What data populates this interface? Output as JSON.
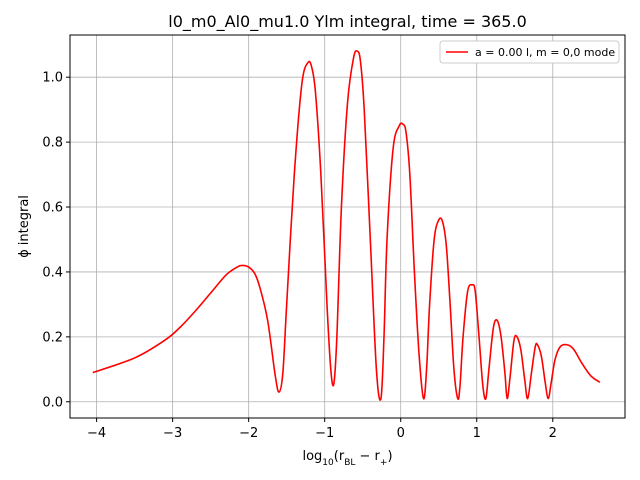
{
  "chart_data": {
    "type": "line",
    "title": "l0_m0_Al0_mu1.0 Ylm integral, time = 365.0",
    "xlabel": "log₁₀(r_BL − r₊)",
    "ylabel": "ϕ integral",
    "xlim": [
      -4.35,
      2.95
    ],
    "ylim": [
      -0.05,
      1.13
    ],
    "xticks": [
      -4,
      -3,
      -2,
      -1,
      0,
      1,
      2
    ],
    "xtick_labels": [
      "−4",
      "−3",
      "−2",
      "−1",
      "0",
      "1",
      "2"
    ],
    "yticks": [
      0.0,
      0.2,
      0.4,
      0.6,
      0.8,
      1.0
    ],
    "ytick_labels": [
      "0.0",
      "0.2",
      "0.4",
      "0.6",
      "0.8",
      "1.0"
    ],
    "grid": true,
    "legend_position": "top-right",
    "series": [
      {
        "name": "a = 0.00 l, m = 0,0 mode",
        "color": "#ff0000",
        "x": [
          -4.05,
          -3.5,
          -3.1,
          -2.9,
          -2.7,
          -2.5,
          -2.3,
          -2.15,
          -2.08,
          -2.0,
          -1.92,
          -1.85,
          -1.75,
          -1.65,
          -1.6,
          -1.55,
          -1.5,
          -1.4,
          -1.3,
          -1.22,
          -1.17,
          -1.12,
          -1.05,
          -0.97,
          -0.92,
          -0.88,
          -0.84,
          -0.78,
          -0.7,
          -0.62,
          -0.57,
          -0.53,
          -0.48,
          -0.4,
          -0.32,
          -0.26,
          -0.22,
          -0.18,
          -0.1,
          -0.02,
          0.03,
          0.07,
          0.12,
          0.18,
          0.24,
          0.3,
          0.34,
          0.38,
          0.44,
          0.5,
          0.55,
          0.6,
          0.65,
          0.7,
          0.75,
          0.78,
          0.82,
          0.88,
          0.94,
          0.98,
          1.03,
          1.08,
          1.12,
          1.16,
          1.22,
          1.27,
          1.32,
          1.37,
          1.4,
          1.44,
          1.49,
          1.53,
          1.58,
          1.63,
          1.67,
          1.72,
          1.77,
          1.8,
          1.85,
          1.9,
          1.94,
          1.98,
          2.03,
          2.1,
          2.2,
          2.28,
          2.38,
          2.5,
          2.62
        ],
        "y": [
          0.09,
          0.135,
          0.19,
          0.23,
          0.28,
          0.335,
          0.39,
          0.415,
          0.42,
          0.415,
          0.395,
          0.35,
          0.25,
          0.08,
          0.03,
          0.09,
          0.3,
          0.7,
          0.98,
          1.045,
          1.03,
          0.95,
          0.7,
          0.3,
          0.1,
          0.055,
          0.2,
          0.6,
          0.92,
          1.06,
          1.08,
          1.05,
          0.9,
          0.5,
          0.1,
          0.01,
          0.2,
          0.5,
          0.78,
          0.85,
          0.855,
          0.83,
          0.7,
          0.4,
          0.15,
          0.01,
          0.1,
          0.3,
          0.5,
          0.56,
          0.555,
          0.48,
          0.3,
          0.1,
          0.01,
          0.05,
          0.2,
          0.34,
          0.36,
          0.34,
          0.2,
          0.05,
          0.01,
          0.1,
          0.23,
          0.25,
          0.2,
          0.09,
          0.01,
          0.08,
          0.19,
          0.2,
          0.16,
          0.07,
          0.01,
          0.09,
          0.17,
          0.175,
          0.14,
          0.06,
          0.01,
          0.06,
          0.13,
          0.17,
          0.175,
          0.16,
          0.12,
          0.08,
          0.06
        ]
      }
    ]
  }
}
